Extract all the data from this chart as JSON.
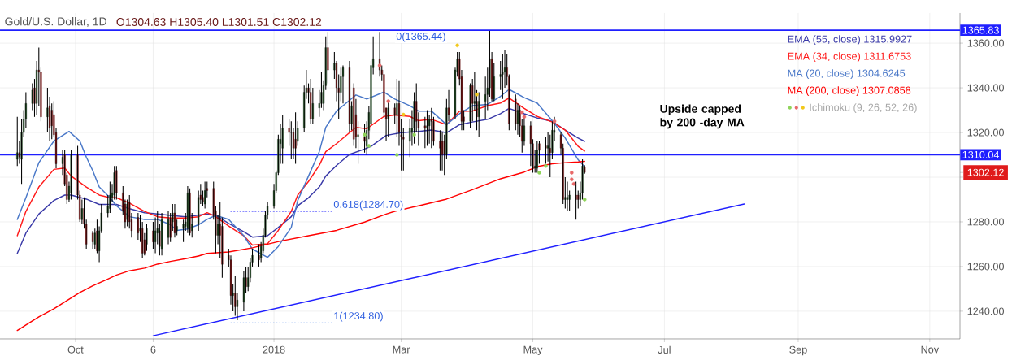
{
  "chart_data": {
    "type": "candlestick",
    "title": "Gold/U.S. Dollar, 1D",
    "subtitle": "O1304.63 H1305.40 L1301.51 C1302.12",
    "x": [
      "2017-09-04",
      "2017-09-05",
      "2017-09-06",
      "2017-09-07",
      "2017-09-08",
      "2017-09-11",
      "2017-09-12",
      "2017-09-13",
      "2017-09-14",
      "2017-09-15",
      "2017-09-18",
      "2017-09-19",
      "2017-09-20",
      "2017-09-21",
      "2017-09-22",
      "2017-09-25",
      "2017-09-26",
      "2017-09-27",
      "2017-09-28",
      "2017-09-29",
      "2017-10-02",
      "2017-10-03",
      "2017-10-04",
      "2017-10-05",
      "2017-10-06",
      "2017-10-09",
      "2017-10-10",
      "2017-10-11",
      "2017-10-12",
      "2017-10-13",
      "2017-10-16",
      "2017-10-17",
      "2017-10-18",
      "2017-10-19",
      "2017-10-20",
      "2017-10-23",
      "2017-10-24",
      "2017-10-25",
      "2017-10-26",
      "2017-10-27",
      "2017-10-30",
      "2017-10-31",
      "2017-11-01",
      "2017-11-02",
      "2017-11-03",
      "2017-11-06",
      "2017-11-07",
      "2017-11-08",
      "2017-11-09",
      "2017-11-10",
      "2017-11-13",
      "2017-11-14",
      "2017-11-15",
      "2017-11-16",
      "2017-11-17",
      "2017-11-20",
      "2017-11-21",
      "2017-11-22",
      "2017-11-23",
      "2017-11-24",
      "2017-11-27",
      "2017-11-28",
      "2017-11-29",
      "2017-11-30",
      "2017-12-01",
      "2017-12-04",
      "2017-12-05",
      "2017-12-06",
      "2017-12-07",
      "2017-12-08",
      "2017-12-11",
      "2017-12-12",
      "2017-12-13",
      "2017-12-14",
      "2017-12-15",
      "2017-12-18",
      "2017-12-19",
      "2017-12-20",
      "2017-12-21",
      "2017-12-22",
      "2017-12-25",
      "2017-12-26",
      "2017-12-27",
      "2017-12-28",
      "2017-12-29",
      "2018-01-01",
      "2018-01-02",
      "2018-01-03",
      "2018-01-04",
      "2018-01-05",
      "2018-01-08",
      "2018-01-09",
      "2018-01-10",
      "2018-01-11",
      "2018-01-12",
      "2018-01-15",
      "2018-01-16",
      "2018-01-17",
      "2018-01-18",
      "2018-01-19",
      "2018-01-22",
      "2018-01-23",
      "2018-01-24",
      "2018-01-25",
      "2018-01-26",
      "2018-01-29",
      "2018-01-30",
      "2018-01-31",
      "2018-02-01",
      "2018-02-02",
      "2018-02-05",
      "2018-02-06",
      "2018-02-07",
      "2018-02-08",
      "2018-02-09",
      "2018-02-12",
      "2018-02-13",
      "2018-02-14",
      "2018-02-15",
      "2018-02-16",
      "2018-02-19",
      "2018-02-20",
      "2018-02-21",
      "2018-02-22",
      "2018-02-23",
      "2018-02-26",
      "2018-02-27",
      "2018-02-28",
      "2018-03-01",
      "2018-03-02",
      "2018-03-05",
      "2018-03-06",
      "2018-03-07",
      "2018-03-08",
      "2018-03-09",
      "2018-03-12",
      "2018-03-13",
      "2018-03-14",
      "2018-03-15",
      "2018-03-16",
      "2018-03-19",
      "2018-03-20",
      "2018-03-21",
      "2018-03-22",
      "2018-03-23",
      "2018-03-26",
      "2018-03-27",
      "2018-03-28",
      "2018-03-29",
      "2018-03-30",
      "2018-04-02",
      "2018-04-03",
      "2018-04-04",
      "2018-04-05",
      "2018-04-06",
      "2018-04-09",
      "2018-04-10",
      "2018-04-11",
      "2018-04-12",
      "2018-04-13",
      "2018-04-16",
      "2018-04-17",
      "2018-04-18",
      "2018-04-19",
      "2018-04-20",
      "2018-04-23",
      "2018-04-24",
      "2018-04-25",
      "2018-04-26",
      "2018-04-27",
      "2018-04-30",
      "2018-05-01",
      "2018-05-02",
      "2018-05-03",
      "2018-05-04",
      "2018-05-07",
      "2018-05-08",
      "2018-05-09",
      "2018-05-10",
      "2018-05-11",
      "2018-05-14",
      "2018-05-15",
      "2018-05-16",
      "2018-05-17",
      "2018-05-18",
      "2018-05-21",
      "2018-05-22",
      "2018-05-23",
      "2018-05-24",
      "2018-05-25"
    ],
    "ohlc": [
      [
        1308,
        1327,
        1305,
        1311
      ],
      [
        1311,
        1316,
        1306,
        1309
      ],
      [
        1308,
        1326,
        1297,
        1320
      ],
      [
        1320,
        1330,
        1318,
        1326
      ],
      [
        1326,
        1338,
        1322,
        1333
      ],
      [
        1333,
        1342,
        1330,
        1339
      ],
      [
        1340,
        1344,
        1327,
        1333
      ],
      [
        1333,
        1352,
        1328,
        1348
      ],
      [
        1348,
        1358,
        1332,
        1347
      ],
      [
        1347,
        1349,
        1325,
        1327
      ],
      [
        1327,
        1340,
        1320,
        1331
      ],
      [
        1332,
        1336,
        1316,
        1322
      ],
      [
        1330,
        1333,
        1317,
        1323
      ],
      [
        1328,
        1334,
        1318,
        1319
      ],
      [
        1320,
        1322,
        1304,
        1306
      ],
      [
        1306,
        1312,
        1301,
        1309
      ],
      [
        1310,
        1312,
        1296,
        1297
      ],
      [
        1301,
        1302,
        1288,
        1290
      ],
      [
        1290,
        1298,
        1289,
        1296
      ],
      [
        1293,
        1312,
        1290,
        1310
      ],
      [
        1310,
        1314,
        1290,
        1292
      ],
      [
        1292,
        1294,
        1280,
        1281
      ],
      [
        1281,
        1290,
        1279,
        1286
      ],
      [
        1286,
        1291,
        1277,
        1279
      ],
      [
        1279,
        1281,
        1268,
        1270
      ],
      [
        1275,
        1276,
        1268,
        1271
      ],
      [
        1270,
        1277,
        1268,
        1275
      ],
      [
        1276,
        1281,
        1266,
        1267
      ],
      [
        1267,
        1278,
        1262,
        1276
      ],
      [
        1276,
        1288,
        1275,
        1284
      ],
      [
        1284,
        1292,
        1282,
        1287
      ],
      [
        1286,
        1298,
        1284,
        1292
      ],
      [
        1291,
        1297,
        1289,
        1293
      ],
      [
        1292,
        1305,
        1290,
        1302
      ],
      [
        1303,
        1305,
        1290,
        1293
      ],
      [
        1293,
        1296,
        1283,
        1285
      ],
      [
        1288,
        1290,
        1277,
        1280
      ],
      [
        1281,
        1290,
        1278,
        1288
      ],
      [
        1289,
        1292,
        1277,
        1280
      ],
      [
        1281,
        1284,
        1273,
        1276
      ],
      [
        1282,
        1284,
        1272,
        1275
      ],
      [
        1276,
        1283,
        1271,
        1277
      ],
      [
        1277,
        1280,
        1264,
        1266
      ],
      [
        1272,
        1275,
        1265,
        1266
      ],
      [
        1270,
        1279,
        1267,
        1277
      ],
      [
        1276,
        1280,
        1268,
        1271
      ],
      [
        1271,
        1282,
        1266,
        1276
      ],
      [
        1275,
        1285,
        1270,
        1277
      ],
      [
        1276,
        1279,
        1265,
        1269
      ],
      [
        1268,
        1284,
        1265,
        1281
      ],
      [
        1273,
        1285,
        1270,
        1281
      ],
      [
        1281,
        1284,
        1271,
        1273
      ],
      [
        1280,
        1288,
        1276,
        1284
      ],
      [
        1284,
        1288,
        1273,
        1275
      ],
      [
        1276,
        1281,
        1274,
        1278
      ],
      [
        1277,
        1281,
        1271,
        1279
      ],
      [
        1278,
        1284,
        1276,
        1280
      ],
      [
        1277,
        1296,
        1275,
        1293
      ],
      [
        1293,
        1295,
        1274,
        1275
      ],
      [
        1276,
        1284,
        1273,
        1279
      ],
      [
        1279,
        1294,
        1276,
        1291
      ],
      [
        1292,
        1297,
        1288,
        1290
      ],
      [
        1291,
        1294,
        1287,
        1289
      ],
      [
        1288,
        1298,
        1286,
        1294
      ],
      [
        1295,
        1298,
        1291,
        1294
      ],
      [
        1295,
        1298,
        1281,
        1283
      ],
      [
        1285,
        1287,
        1266,
        1274
      ],
      [
        1274,
        1283,
        1270,
        1279
      ],
      [
        1279,
        1289,
        1264,
        1274
      ],
      [
        1278,
        1282,
        1255,
        1261
      ],
      [
        1265,
        1268,
        1260,
        1263
      ],
      [
        1263,
        1265,
        1243,
        1247
      ],
      [
        1247,
        1252,
        1240,
        1248
      ],
      [
        1248,
        1256,
        1238,
        1242
      ],
      [
        1242,
        1248,
        1236,
        1245
      ],
      [
        1244,
        1258,
        1240,
        1255
      ],
      [
        1255,
        1260,
        1248,
        1251
      ],
      [
        1251,
        1260,
        1249,
        1255
      ],
      [
        1255,
        1264,
        1253,
        1262
      ],
      [
        1262,
        1268,
        1260,
        1265
      ],
      [
        1265,
        1270,
        1260,
        1263
      ],
      [
        1264,
        1271,
        1262,
        1269
      ],
      [
        1267,
        1277,
        1266,
        1274
      ],
      [
        1274,
        1285,
        1273,
        1283
      ],
      [
        1283,
        1289,
        1281,
        1287
      ],
      [
        1287,
        1297,
        1286,
        1294
      ],
      [
        1294,
        1303,
        1293,
        1302
      ],
      [
        1302,
        1319,
        1301,
        1317
      ],
      [
        1315,
        1324,
        1306,
        1317
      ],
      [
        1313,
        1328,
        1306,
        1322
      ],
      [
        1322,
        1326,
        1314,
        1320
      ],
      [
        1320,
        1325,
        1308,
        1320
      ],
      [
        1320,
        1322,
        1308,
        1313
      ],
      [
        1317,
        1329,
        1306,
        1313
      ],
      [
        1316,
        1325,
        1314,
        1322
      ],
      [
        1322,
        1341,
        1320,
        1338
      ],
      [
        1338,
        1348,
        1335,
        1340
      ],
      [
        1340,
        1342,
        1333,
        1338
      ],
      [
        1338,
        1344,
        1324,
        1326
      ],
      [
        1326,
        1340,
        1324,
        1333
      ],
      [
        1331,
        1339,
        1327,
        1333
      ],
      [
        1333,
        1347,
        1331,
        1338
      ],
      [
        1333,
        1343,
        1330,
        1341
      ],
      [
        1341,
        1363,
        1339,
        1358
      ],
      [
        1358,
        1365,
        1342,
        1348
      ],
      [
        1348,
        1356,
        1344,
        1351
      ],
      [
        1351,
        1352,
        1334,
        1340
      ],
      [
        1340,
        1346,
        1326,
        1338
      ],
      [
        1338,
        1349,
        1334,
        1345
      ],
      [
        1345,
        1350,
        1333,
        1349
      ],
      [
        1349,
        1352,
        1320,
        1324
      ],
      [
        1324,
        1334,
        1321,
        1332
      ],
      [
        1340,
        1342,
        1314,
        1317
      ],
      [
        1328,
        1335,
        1313,
        1318
      ],
      [
        1318,
        1325,
        1306,
        1319
      ],
      [
        1318,
        1324,
        1311,
        1316
      ],
      [
        1314,
        1325,
        1310,
        1321
      ],
      [
        1321,
        1332,
        1317,
        1329
      ],
      [
        1324,
        1352,
        1320,
        1350
      ],
      [
        1349,
        1363,
        1346,
        1353
      ],
      [
        1353,
        1365,
        1345,
        1348
      ],
      [
        1348,
        1350,
        1343,
        1346
      ],
      [
        1346,
        1348,
        1327,
        1329
      ],
      [
        1331,
        1331,
        1316,
        1326
      ],
      [
        1326,
        1334,
        1318,
        1331
      ],
      [
        1331,
        1333,
        1324,
        1328
      ],
      [
        1328,
        1344,
        1318,
        1333
      ],
      [
        1333,
        1343,
        1314,
        1320
      ],
      [
        1319,
        1326,
        1303,
        1318
      ],
      [
        1318,
        1322,
        1303,
        1317
      ],
      [
        1316,
        1326,
        1309,
        1322
      ],
      [
        1320,
        1330,
        1314,
        1322
      ],
      [
        1322,
        1338,
        1315,
        1334
      ],
      [
        1334,
        1342,
        1320,
        1325
      ],
      [
        1325,
        1329,
        1314,
        1322
      ],
      [
        1323,
        1327,
        1313,
        1322
      ],
      [
        1322,
        1330,
        1314,
        1323
      ],
      [
        1323,
        1328,
        1315,
        1326
      ],
      [
        1326,
        1331,
        1313,
        1325
      ],
      [
        1325,
        1327,
        1314,
        1316
      ],
      [
        1316,
        1321,
        1303,
        1313
      ],
      [
        1316,
        1320,
        1303,
        1310
      ],
      [
        1316,
        1319,
        1301,
        1310
      ],
      [
        1310,
        1335,
        1308,
        1331
      ],
      [
        1331,
        1339,
        1325,
        1328
      ],
      [
        1328,
        1349,
        1326,
        1348
      ],
      [
        1347,
        1356,
        1345,
        1353
      ],
      [
        1353,
        1356,
        1341,
        1344
      ],
      [
        1345,
        1348,
        1321,
        1325
      ],
      [
        1327,
        1330,
        1321,
        1325
      ],
      [
        1325,
        1342,
        1322,
        1341
      ],
      [
        1341,
        1344,
        1325,
        1333
      ],
      [
        1333,
        1347,
        1330,
        1334
      ],
      [
        1334,
        1339,
        1321,
        1327
      ],
      [
        1327,
        1338,
        1318,
        1334
      ],
      [
        1334,
        1345,
        1326,
        1337
      ],
      [
        1337,
        1349,
        1330,
        1340
      ],
      [
        1340,
        1365.5,
        1336,
        1353
      ],
      [
        1353,
        1356,
        1334,
        1335
      ],
      [
        1335,
        1351,
        1334,
        1345
      ],
      [
        1345,
        1352,
        1339,
        1346
      ],
      [
        1346,
        1355,
        1335,
        1347
      ],
      [
        1347,
        1357,
        1340,
        1349
      ],
      [
        1349,
        1355,
        1341,
        1345
      ],
      [
        1345,
        1346,
        1321,
        1324
      ],
      [
        1335,
        1337,
        1321,
        1324
      ],
      [
        1324,
        1333,
        1319,
        1330
      ],
      [
        1330,
        1332,
        1318,
        1323
      ],
      [
        1323,
        1326,
        1311,
        1316
      ],
      [
        1316,
        1327,
        1314,
        1323
      ],
      [
        1323,
        1325,
        1305,
        1315
      ],
      [
        1315,
        1317,
        1302,
        1304
      ],
      [
        1304,
        1312,
        1302,
        1305
      ],
      [
        1304,
        1316,
        1302,
        1312
      ],
      [
        1315,
        1316,
        1306,
        1312
      ],
      [
        1314,
        1318,
        1306,
        1313
      ],
      [
        1313,
        1320,
        1307,
        1314
      ],
      [
        1313,
        1319,
        1300,
        1311
      ],
      [
        1311,
        1325,
        1308,
        1321
      ],
      [
        1320,
        1327,
        1316,
        1321
      ],
      [
        1319,
        1320,
        1310,
        1313
      ],
      [
        1313,
        1315,
        1288,
        1290
      ],
      [
        1290,
        1300,
        1286,
        1291
      ],
      [
        1290,
        1298,
        1285,
        1291
      ],
      [
        1290,
        1294,
        1285,
        1292
      ],
      [
        1292,
        1298,
        1281,
        1290
      ],
      [
        1292,
        1294,
        1286,
        1290
      ],
      [
        1290,
        1298,
        1287,
        1293
      ],
      [
        1293,
        1308,
        1290,
        1305
      ],
      [
        1304.63,
        1305.4,
        1301.51,
        1302.12
      ]
    ],
    "series": [
      {
        "name": "EMA (55, close) 1315.9927",
        "type": "line",
        "color": "#3a3aa8",
        "x": [
          "2017-09-04",
          "2017-09-08",
          "2017-09-14",
          "2017-09-21",
          "2017-09-26",
          "2017-09-29",
          "2017-10-06",
          "2017-10-12",
          "2017-10-20",
          "2017-10-26",
          "2017-11-02",
          "2017-11-08",
          "2017-11-14",
          "2017-11-21",
          "2017-11-27",
          "2017-12-01",
          "2017-12-05",
          "2017-12-11",
          "2017-12-18",
          "2017-12-22",
          "2017-12-29",
          "2018-01-03",
          "2018-01-09",
          "2018-01-12",
          "2018-01-17",
          "2018-01-22",
          "2018-01-25",
          "2018-01-30",
          "2018-02-05",
          "2018-02-12",
          "2018-02-15",
          "2018-02-22",
          "2018-03-01",
          "2018-03-09",
          "2018-03-15",
          "2018-03-22",
          "2018-03-28",
          "2018-04-03",
          "2018-04-10",
          "2018-04-16",
          "2018-04-20",
          "2018-04-27",
          "2018-05-03",
          "2018-05-10",
          "2018-05-16",
          "2018-05-22",
          "2018-05-25"
        ],
        "values": [
          1265.9,
          1275,
          1283.5,
          1289.6,
          1292,
          1292,
          1290.2,
          1287.8,
          1287.8,
          1285.9,
          1284.1,
          1283.5,
          1282.9,
          1282.3,
          null,
          1283.5,
          1282.9,
          1279.3,
          1275.6,
          1273.2,
          1273.8,
          1277.5,
          1282.3,
          1287.2,
          1290.8,
          1295.6,
          1300.5,
          1305.3,
          1310.2,
          1312.6,
          1313.8,
          1318.7,
          1319.9,
          1320.5,
          1321.1,
          1319.9,
          1323.5,
          1324.7,
          1325.9,
          1328.4,
          1330.8,
          1328.4,
          1326.5,
          1325,
          1321.1,
          1317.5,
          1316
        ]
      },
      {
        "name": "EMA (34, close) 1311.6753",
        "type": "line",
        "color": "#ff1a1a",
        "x": [
          "2017-09-04",
          "2017-09-08",
          "2017-09-14",
          "2017-09-21",
          "2017-09-26",
          "2017-09-29",
          "2017-10-06",
          "2017-10-12",
          "2017-10-17",
          "2017-10-20",
          "2017-10-26",
          "2017-11-02",
          "2017-11-08",
          "2017-11-14",
          "2017-11-21",
          "2017-11-27",
          "2017-12-01",
          "2017-12-05",
          "2017-12-11",
          "2017-12-18",
          "2017-12-22",
          "2017-12-29",
          "2018-01-03",
          "2018-01-09",
          "2018-01-12",
          "2018-01-17",
          "2018-01-22",
          "2018-01-25",
          "2018-01-30",
          "2018-02-05",
          "2018-02-08",
          "2018-02-13",
          "2018-02-21",
          "2018-02-26",
          "2018-03-05",
          "2018-03-09",
          "2018-03-15",
          "2018-03-22",
          "2018-03-28",
          "2018-04-03",
          "2018-04-10",
          "2018-04-16",
          "2018-04-20",
          "2018-04-27",
          "2018-05-03",
          "2018-05-10",
          "2018-05-16",
          "2018-05-22",
          "2018-05-25"
        ],
        "values": [
          1273.8,
          1284.7,
          1295.6,
          1303.5,
          1304.1,
          1300.5,
          1295.6,
          1292,
          1290.8,
          1290.8,
          1288.4,
          1284.7,
          1282.3,
          1281.7,
          1281.7,
          1282.3,
          1284.1,
          1282.3,
          1278.1,
          1273.8,
          1269.6,
          1270.2,
          1276.2,
          1284.7,
          1292,
          1298.1,
          1305.3,
          1311.4,
          1315,
          1319.9,
          1322.3,
          1321.7,
          1327.2,
          1327.8,
          1327.2,
          1325.3,
          1325.9,
          1323.5,
          1329.6,
          1329.6,
          1332,
          1333.2,
          1335.4,
          1330.8,
          1327.2,
          1324.7,
          1321.1,
          1313.8,
          1311.7
        ]
      },
      {
        "name": "MA (20, close) 1304.6245",
        "type": "line",
        "color": "#4a78c8",
        "x": [
          "2017-09-04",
          "2017-09-08",
          "2017-09-14",
          "2017-09-21",
          "2017-09-27",
          "2017-09-28",
          "2017-10-03",
          "2017-10-06",
          "2017-10-09",
          "2017-10-12",
          "2017-10-17",
          "2017-10-20",
          "2017-10-26",
          "2017-11-02",
          "2017-11-08",
          "2017-11-14",
          "2017-11-17",
          "2017-11-22",
          "2017-11-27",
          "2017-12-01",
          "2017-12-05",
          "2017-12-11",
          "2017-12-18",
          "2017-12-22",
          "2017-12-29",
          "2018-01-03",
          "2018-01-09",
          "2018-01-12",
          "2018-01-17",
          "2018-01-22",
          "2018-01-25",
          "2018-01-30",
          "2018-02-05",
          "2018-02-08",
          "2018-02-13",
          "2018-02-21",
          "2018-02-26",
          "2018-03-05",
          "2018-03-09",
          "2018-03-15",
          "2018-03-22",
          "2018-03-28",
          "2018-04-03",
          "2018-04-10",
          "2018-04-16",
          "2018-04-20",
          "2018-04-27",
          "2018-05-03",
          "2018-05-10",
          "2018-05-11",
          "2018-05-16",
          "2018-05-22",
          "2018-05-25"
        ],
        "values": [
          1281.1,
          1290.8,
          1306.5,
          1316.2,
          1319.9,
          1320.5,
          1316.2,
          1309,
          1302.9,
          1295.6,
          1290.8,
          1287.2,
          1282.3,
          1281.1,
          1281.1,
          1278.7,
          1276.2,
          1276.8,
          1278.7,
          1281.1,
          1282.9,
          1281.1,
          1273.8,
          1267.8,
          1264.1,
          1269,
          1277.5,
          1289.6,
          1300.5,
          1311.4,
          1322.3,
          1329.6,
          1334.4,
          1336.8,
          1335,
          1338.1,
          1335,
          1332,
          1329.6,
          1329.6,
          1323.5,
          1328.4,
          1332,
          1332.6,
          1336.2,
          1339.3,
          1335.6,
          1333.2,
          1325.3,
          1324.1,
          1317.5,
          1307.8,
          1304.6
        ]
      },
      {
        "name": "MA (200, close) 1307.0858",
        "type": "line",
        "color": "#ff0000",
        "x": [
          "2017-09-04",
          "2017-09-08",
          "2017-09-14",
          "2017-09-21",
          "2017-09-27",
          "2017-10-03",
          "2017-10-09",
          "2017-10-16",
          "2017-10-20",
          "2017-10-26",
          "2017-11-02",
          "2017-11-08",
          "2017-11-14",
          "2017-11-21",
          "2017-11-27",
          "2017-12-01",
          "2017-12-11",
          "2017-12-22",
          "2018-01-04",
          "2018-01-17",
          "2018-01-30",
          "2018-02-12",
          "2018-02-22",
          "2018-02-26",
          "2018-03-09",
          "2018-03-22",
          "2018-04-03",
          "2018-04-16",
          "2018-04-27",
          "2018-05-03",
          "2018-05-10",
          "2018-05-16",
          "2018-05-22",
          "2018-05-25"
        ],
        "values": [
          1231.4,
          1233.8,
          1237.5,
          1241.1,
          1244.7,
          1248.4,
          1251.4,
          1254.4,
          1256.2,
          1258.1,
          1259.3,
          1261.1,
          1262.3,
          1263.5,
          1264.7,
          1265.9,
          1266.5,
          1268.4,
          1271.4,
          1273.8,
          1276.2,
          1279.9,
          1283.5,
          1284.7,
          1287.2,
          1290.2,
          1294.4,
          1299.3,
          1302.3,
          1304.7,
          1306,
          1306.5,
          1306.8,
          1307.1
        ]
      },
      {
        "name": "Ichimoku (9, 26, 52, 26)",
        "type": "scatter",
        "marker": "circle",
        "colors": [
          "#8fd45a",
          "#8fd45a",
          "#e86868",
          "#e86868",
          "#8fd45a",
          "#f2c81a",
          "#8fd45a",
          "#f2c81a",
          "#f2c81a",
          "#e86868",
          "#e86868",
          "#8fd45a",
          "#8fd45a",
          "#e86868",
          "#e86868",
          "#e86868",
          "#e86868",
          "#8fd45a"
        ],
        "x": [
          "2018-02-12",
          "2018-02-14",
          "2018-02-19",
          "2018-02-23",
          "2018-02-27",
          "2018-03-02",
          "2018-03-07",
          "2018-03-27",
          "2018-04-05",
          "2018-04-26",
          "2018-04-27",
          "2018-05-04",
          "2018-05-07",
          "2018-05-11",
          "2018-05-19",
          "2018-05-19",
          "2018-05-20",
          "2018-05-25"
        ],
        "values": [
          1319,
          1314,
          1350,
          1334,
          1310,
          1328,
          1319,
          1359,
          1337,
          1329,
          1327,
          1302,
          1305,
          1325,
          1302,
          1299,
          1297,
          1290
        ]
      },
      {
        "type": "line",
        "color": "#1f1fff",
        "x": [
          "2017-11-06",
          "2018-08-07"
        ],
        "values": [
          1229,
          1288
        ]
      },
      {
        "type": "line",
        "line_style": "dotted",
        "color": "#1f1fff",
        "x": [
          "2017-12-12",
          "2018-01-28"
        ],
        "values": [
          1284.7,
          1284.7
        ]
      },
      {
        "type": "line",
        "line_style": "dotted",
        "color": "#5b8fe8",
        "x": [
          "2017-12-12",
          "2018-01-28"
        ],
        "values": [
          1234.8,
          1234.8
        ]
      }
    ],
    "xlim": [
      "2017-08-27",
      "2018-11-15"
    ],
    "xticks": [
      {
        "value": "2017-10-01",
        "label": "Oct"
      },
      {
        "value": "2017-11-06",
        "label": "6"
      },
      {
        "value": "2018-01-01",
        "label": "2018"
      },
      {
        "value": "2018-03-01",
        "label": "Mar"
      },
      {
        "value": "2018-05-01",
        "label": "May"
      },
      {
        "value": "2018-07-01",
        "label": "Jul"
      },
      {
        "value": "2018-09-01",
        "label": "Sep"
      },
      {
        "value": "2018-11-01",
        "label": "Nov"
      }
    ],
    "ylim": [
      1227.6,
      1373.5
    ],
    "yticks": [
      {
        "value": 1240,
        "label": "1240.00"
      },
      {
        "value": 1260,
        "label": "1260.00"
      },
      {
        "value": 1280,
        "label": "1280.00"
      },
      {
        "value": 1300,
        "label": null
      },
      {
        "value": 1302.12,
        "label": "1302.12"
      },
      {
        "value": 1320,
        "label": "1320.00"
      },
      {
        "value": 1340,
        "label": "1340.00"
      },
      {
        "value": 1360,
        "label": "1360.00"
      }
    ],
    "grid": true,
    "legend": "top right",
    "ref_lines": [
      {
        "axis": "y",
        "value": 1365.83,
        "label": "1365.83",
        "color": "#1f1fff"
      },
      {
        "axis": "y",
        "value": 1310.04,
        "label": "1310.04",
        "color": "#1f1fff"
      }
    ],
    "annotations": [
      "Upside capped by 200 -day MA",
      {
        "text": "0(1365.44)",
        "x": "2018-02-26",
        "y": 1365.44
      },
      {
        "text": "0.618(1284.70)",
        "x": "2018-01-28",
        "y": 1284.7
      },
      {
        "text": "1(1234.80)",
        "x": "2018-01-28",
        "y": 1234.8
      }
    ]
  }
}
